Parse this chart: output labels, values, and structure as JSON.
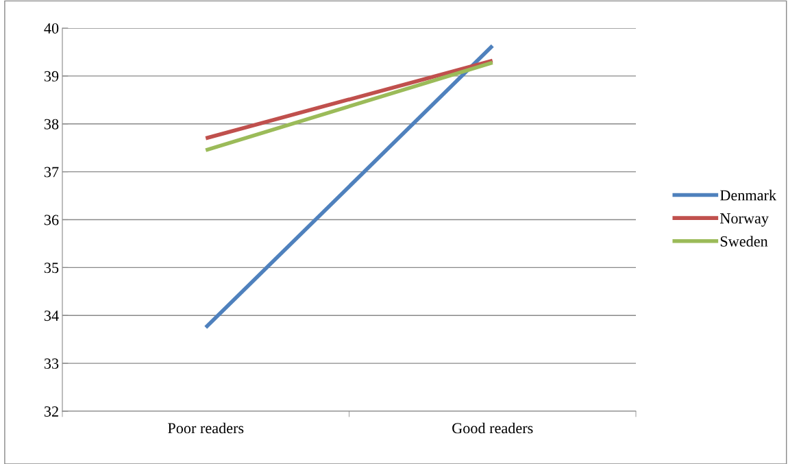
{
  "chart_data": {
    "type": "line",
    "categories": [
      "Poor readers",
      "Good readers"
    ],
    "series": [
      {
        "name": "Denmark",
        "color": "#4f81bd",
        "values": [
          33.75,
          39.63
        ]
      },
      {
        "name": "Norway",
        "color": "#c0504d",
        "values": [
          37.7,
          39.32
        ]
      },
      {
        "name": "Sweden",
        "color": "#9bbb59",
        "values": [
          37.45,
          39.28
        ]
      }
    ],
    "ylim": [
      32,
      40
    ],
    "yticks": [
      32,
      33,
      34,
      35,
      36,
      37,
      38,
      39,
      40
    ],
    "grid": "y",
    "legend": "right",
    "marker": "none",
    "line_style": "solid"
  }
}
